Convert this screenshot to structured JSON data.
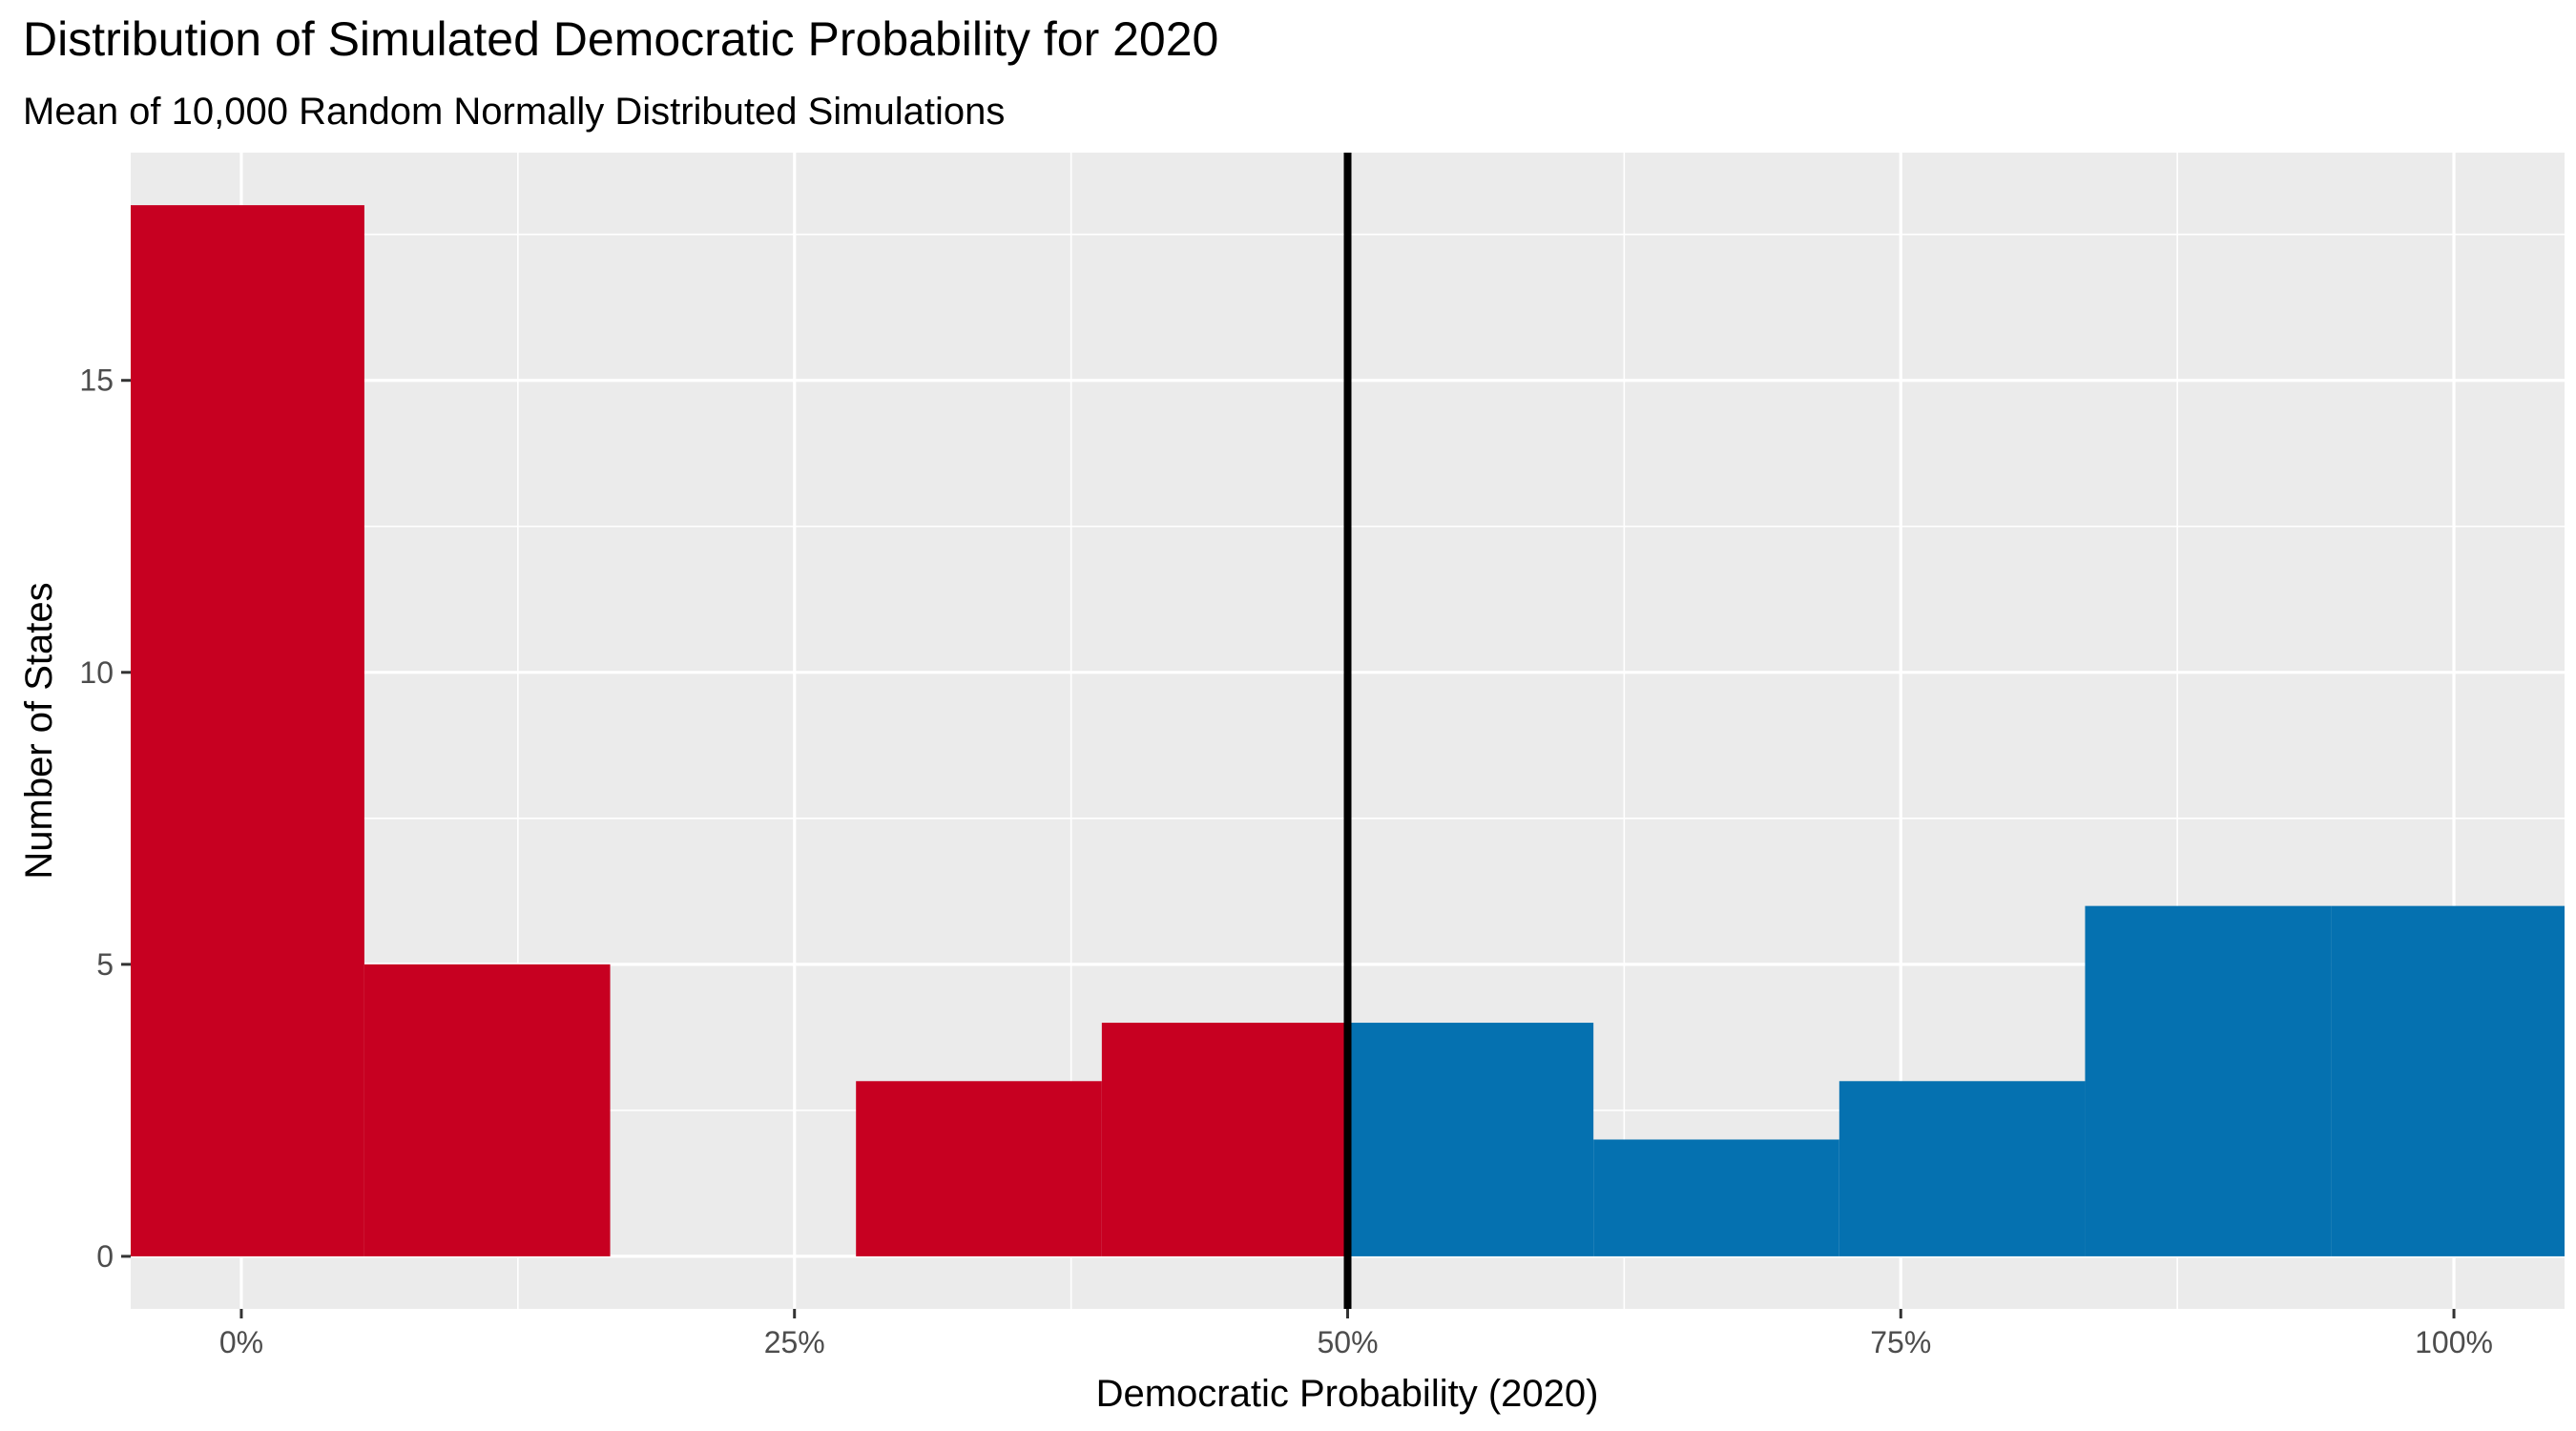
{
  "chart_data": {
    "type": "histogram",
    "title": "Distribution of Simulated Democratic Probability for 2020",
    "subtitle": "Mean of 10,000 Random Normally Distributed Simulations",
    "xlabel": "Democratic Probability (2020)",
    "ylabel": "Number of States",
    "x_ticks": [
      {
        "value": 0.0,
        "label": "0%"
      },
      {
        "value": 0.25,
        "label": "25%"
      },
      {
        "value": 0.5,
        "label": "50%"
      },
      {
        "value": 0.75,
        "label": "75%"
      },
      {
        "value": 1.0,
        "label": "100%"
      }
    ],
    "y_ticks": [
      {
        "value": 0,
        "label": "0"
      },
      {
        "value": 5,
        "label": "5"
      },
      {
        "value": 10,
        "label": "10"
      },
      {
        "value": 15,
        "label": "15"
      }
    ],
    "xlim": [
      -0.05,
      1.05
    ],
    "ylim": [
      -0.9,
      18.9
    ],
    "grid": true,
    "reference_line": {
      "x": 0.5
    },
    "colors": {
      "republican": "#C70021",
      "democratic": "#0571B0",
      "panel": "#EBEBEB",
      "grid": "#FFFFFF"
    },
    "bins": [
      {
        "x0": -0.0556,
        "x1": 0.0556,
        "count": 18,
        "party": "republican"
      },
      {
        "x0": 0.0556,
        "x1": 0.1667,
        "count": 5,
        "party": "republican"
      },
      {
        "x0": 0.1667,
        "x1": 0.2778,
        "count": 0,
        "party": "republican"
      },
      {
        "x0": 0.2778,
        "x1": 0.3889,
        "count": 3,
        "party": "republican"
      },
      {
        "x0": 0.3889,
        "x1": 0.5,
        "count": 4,
        "party": "republican"
      },
      {
        "x0": 0.5,
        "x1": 0.6111,
        "count": 4,
        "party": "democratic"
      },
      {
        "x0": 0.6111,
        "x1": 0.7222,
        "count": 2,
        "party": "democratic"
      },
      {
        "x0": 0.7222,
        "x1": 0.8333,
        "count": 3,
        "party": "democratic"
      },
      {
        "x0": 0.8333,
        "x1": 0.9444,
        "count": 6,
        "party": "democratic"
      },
      {
        "x0": 0.9444,
        "x1": 1.0556,
        "count": 6,
        "party": "democratic"
      }
    ]
  }
}
